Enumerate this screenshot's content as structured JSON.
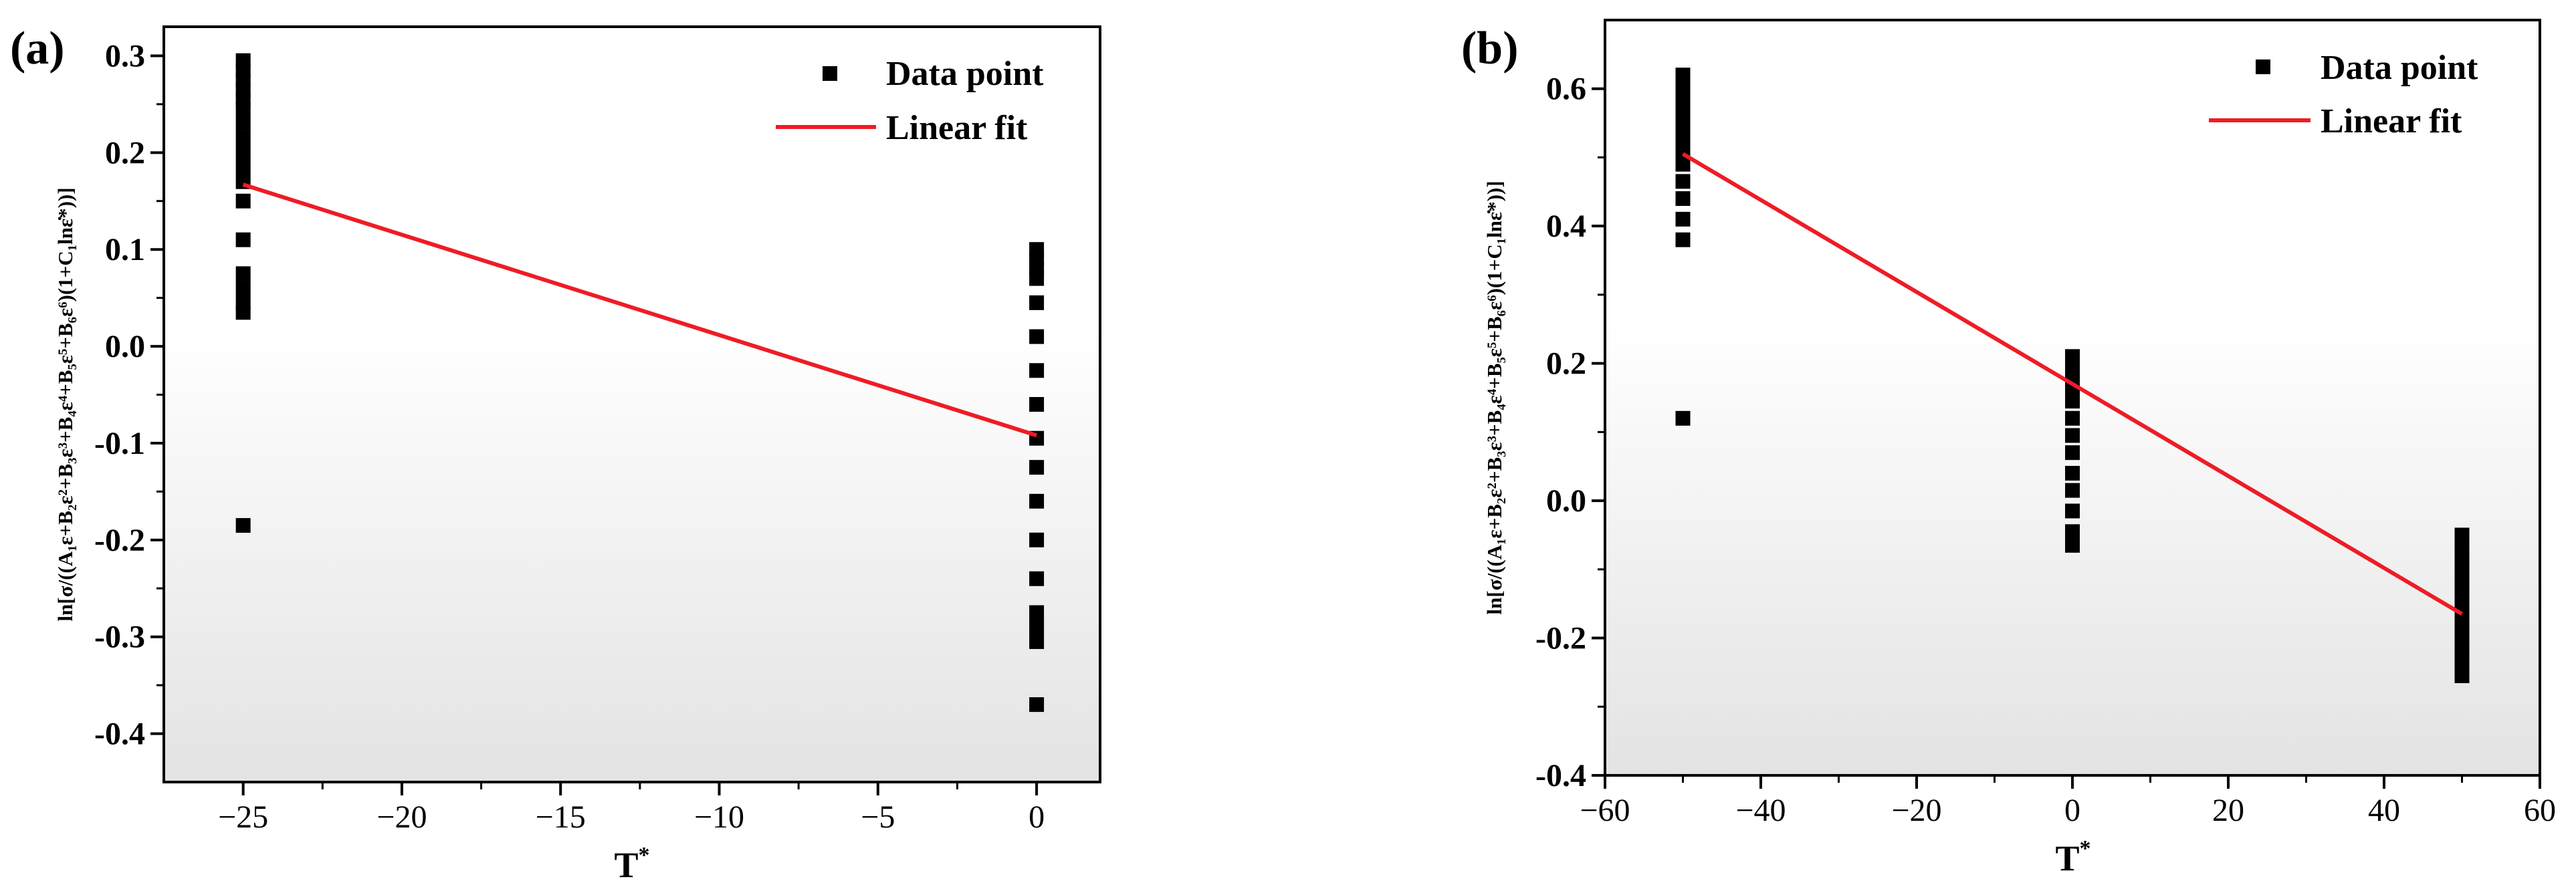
{
  "figure": {
    "background": "#ffffff",
    "plot_gradient_top": "#ffffff",
    "plot_gradient_bottom": "#e3e3e3"
  },
  "chart_data": [
    {
      "panel_label": "(a)",
      "type": "scatter",
      "title": "",
      "xlabel": "T",
      "xlabel_superscript": "*",
      "ylabel": "ln[σ/((A₁ε+B₂ε²+B₃ε³+B₄ε⁴+B₅ε⁵+B₆ε⁶)(1+C₁lnε̇*))]",
      "xlim": [
        -27.5,
        2
      ],
      "ylim": [
        -0.45,
        0.33
      ],
      "xticks": [
        -25,
        -20,
        -15,
        -10,
        -5,
        0
      ],
      "xtick_labels": [
        "−25",
        "−20",
        "−15",
        "−10",
        "−5",
        "0"
      ],
      "xminor": [
        -22.5,
        -17.5,
        -12.5,
        -7.5,
        -2.5
      ],
      "yticks": [
        -0.4,
        -0.3,
        -0.2,
        -0.1,
        0.0,
        0.1,
        0.2,
        0.3
      ],
      "ytick_labels": [
        "-0.4",
        "-0.3",
        "-0.2",
        "-0.1",
        "0.0",
        "0.1",
        "0.2",
        "0.3"
      ],
      "yminor": [
        -0.35,
        -0.25,
        -0.15,
        -0.05,
        0.05,
        0.15,
        0.25
      ],
      "legend_position": "top-right",
      "series": [
        {
          "name": "Data point",
          "kind": "scatter",
          "color": "#000000",
          "points": [
            [
              -25,
              0.295
            ],
            [
              -25,
              0.285
            ],
            [
              -25,
              0.275
            ],
            [
              -25,
              0.265
            ],
            [
              -25,
              0.255
            ],
            [
              -25,
              0.245
            ],
            [
              -25,
              0.23
            ],
            [
              -25,
              0.215
            ],
            [
              -25,
              0.2
            ],
            [
              -25,
              0.185
            ],
            [
              -25,
              0.17
            ],
            [
              -25,
              0.15
            ],
            [
              -25,
              0.11
            ],
            [
              -25,
              0.075
            ],
            [
              -25,
              0.06
            ],
            [
              -25,
              0.045
            ],
            [
              -25,
              0.035
            ],
            [
              -25,
              -0.185
            ],
            [
              0,
              0.1
            ],
            [
              0,
              0.09
            ],
            [
              0,
              0.08
            ],
            [
              0,
              0.07
            ],
            [
              0,
              0.045
            ],
            [
              0,
              0.01
            ],
            [
              0,
              -0.025
            ],
            [
              0,
              -0.06
            ],
            [
              0,
              -0.095
            ],
            [
              0,
              -0.125
            ],
            [
              0,
              -0.16
            ],
            [
              0,
              -0.2
            ],
            [
              0,
              -0.24
            ],
            [
              0,
              -0.275
            ],
            [
              0,
              -0.29
            ],
            [
              0,
              -0.305
            ],
            [
              0,
              -0.37
            ]
          ]
        },
        {
          "name": "Linear fit",
          "kind": "line",
          "color": "#ee1c25",
          "x": [
            -25,
            0
          ],
          "y": [
            0.167,
            -0.092
          ]
        }
      ]
    },
    {
      "panel_label": "(b)",
      "type": "scatter",
      "title": "",
      "xlabel": "T",
      "xlabel_superscript": "*",
      "ylabel": "ln[σ/((A₁ε+B₂ε²+B₃ε³+B₄ε⁴+B₅ε⁵+B₆ε⁶)(1+C₁lnε̇*))]",
      "xlim": [
        -60,
        60
      ],
      "ylim": [
        -0.4,
        0.7
      ],
      "xticks": [
        -60,
        -40,
        -20,
        0,
        20,
        40,
        60
      ],
      "xtick_labels": [
        "−60",
        "−40",
        "−20",
        "0",
        "20",
        "40",
        "60"
      ],
      "xminor": [
        -50,
        -30,
        -10,
        10,
        30,
        50
      ],
      "yticks": [
        -0.4,
        -0.2,
        0.0,
        0.2,
        0.4,
        0.6
      ],
      "ytick_labels": [
        "-0.4",
        "-0.2",
        "0.0",
        "0.2",
        "0.4",
        "0.6"
      ],
      "yminor": [
        -0.3,
        -0.1,
        0.1,
        0.3,
        0.5
      ],
      "legend_position": "top-right",
      "series": [
        {
          "name": "Data point",
          "kind": "scatter",
          "color": "#000000",
          "points": [
            [
              -50,
              0.62
            ],
            [
              -50,
              0.6
            ],
            [
              -50,
              0.58
            ],
            [
              -50,
              0.565
            ],
            [
              -50,
              0.55
            ],
            [
              -50,
              0.53
            ],
            [
              -50,
              0.51
            ],
            [
              -50,
              0.49
            ],
            [
              -50,
              0.465
            ],
            [
              -50,
              0.44
            ],
            [
              -50,
              0.41
            ],
            [
              -50,
              0.38
            ],
            [
              -50,
              0.12
            ],
            [
              0,
              0.21
            ],
            [
              0,
              0.195
            ],
            [
              0,
              0.18
            ],
            [
              0,
              0.165
            ],
            [
              0,
              0.145
            ],
            [
              0,
              0.12
            ],
            [
              0,
              0.095
            ],
            [
              0,
              0.07
            ],
            [
              0,
              0.04
            ],
            [
              0,
              0.015
            ],
            [
              0,
              -0.015
            ],
            [
              0,
              -0.045
            ],
            [
              0,
              -0.065
            ],
            [
              50,
              -0.05
            ],
            [
              50,
              -0.065
            ],
            [
              50,
              -0.08
            ],
            [
              50,
              -0.095
            ],
            [
              50,
              -0.11
            ],
            [
              50,
              -0.125
            ],
            [
              50,
              -0.14
            ],
            [
              50,
              -0.155
            ],
            [
              50,
              -0.17
            ],
            [
              50,
              -0.185
            ],
            [
              50,
              -0.2
            ],
            [
              50,
              -0.215
            ],
            [
              50,
              -0.23
            ],
            [
              50,
              -0.245
            ],
            [
              50,
              -0.255
            ]
          ]
        },
        {
          "name": "Linear fit",
          "kind": "line",
          "color": "#ee1c25",
          "x": [
            -50,
            50
          ],
          "y": [
            0.505,
            -0.165
          ]
        }
      ]
    }
  ]
}
